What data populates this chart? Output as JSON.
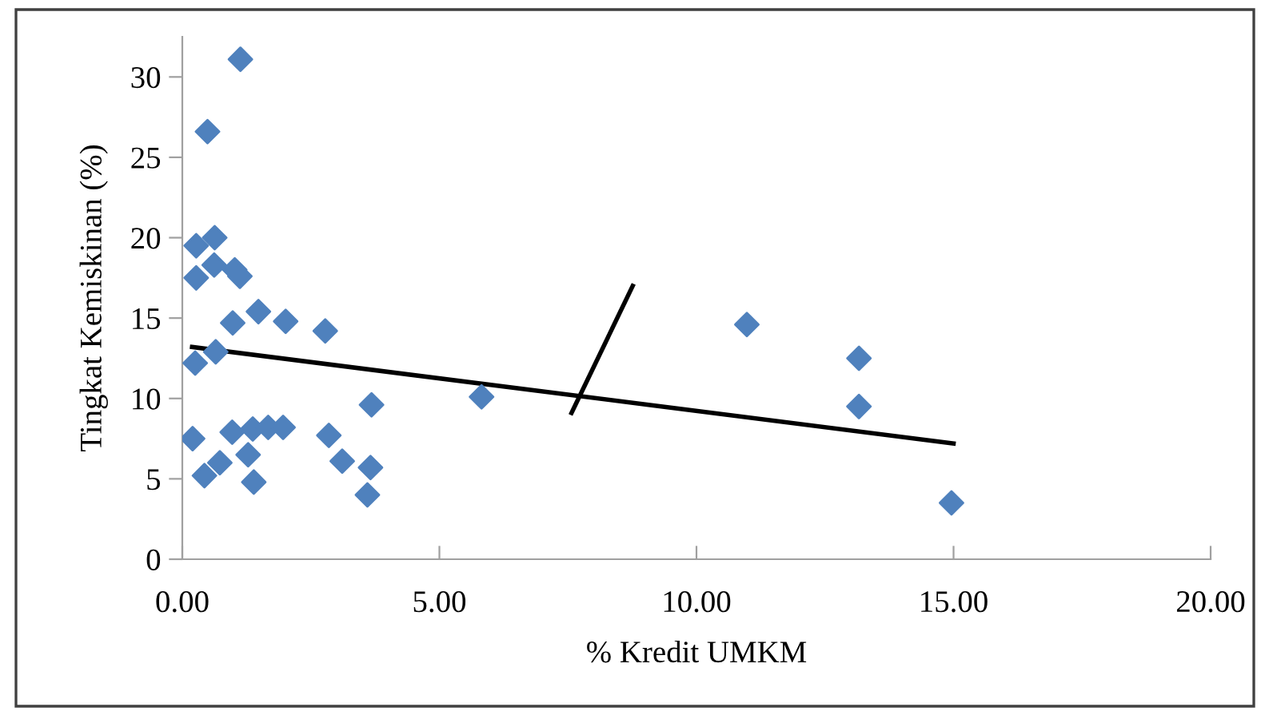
{
  "chart_data": {
    "type": "scatter",
    "xlabel": "% Kredit UMKM",
    "ylabel": "Tingkat Kemiskinan (%)",
    "xlim": [
      0,
      20
    ],
    "xticks": [
      {
        "value": 0,
        "label": "0.00"
      },
      {
        "value": 5,
        "label": "5.00"
      },
      {
        "value": 10,
        "label": "10.00"
      },
      {
        "value": 15,
        "label": "15.00"
      },
      {
        "value": 20,
        "label": "20.00"
      }
    ],
    "ylim": [
      0,
      32.5
    ],
    "yticks": [
      0,
      5,
      10,
      15,
      20,
      25,
      30
    ],
    "grid": false,
    "legend": false,
    "series": [
      {
        "marker": "diamond",
        "color": "#4f81bd",
        "x": [
          1.13,
          0.49,
          0.27,
          0.63,
          0.62,
          1.02,
          1.12,
          0.27,
          1.48,
          0.98,
          2.01,
          2.78,
          0.65,
          0.25,
          5.82,
          3.68,
          0.2,
          0.97,
          1.37,
          1.67,
          1.96,
          2.85,
          1.28,
          0.73,
          0.43,
          3.11,
          3.66,
          1.39,
          3.6,
          10.98,
          13.16,
          13.16,
          14.96
        ],
        "values": [
          31.1,
          26.6,
          19.5,
          20.0,
          18.3,
          18.0,
          17.6,
          17.5,
          15.4,
          14.7,
          14.8,
          14.2,
          12.9,
          12.2,
          10.1,
          9.6,
          7.5,
          7.9,
          8.1,
          8.2,
          8.2,
          7.7,
          6.5,
          6.0,
          5.2,
          6.1,
          5.7,
          4.8,
          4.0,
          14.6,
          12.5,
          9.5,
          3.5
        ]
      },
      {
        "type": "line",
        "marker": "none",
        "line_style": "solid",
        "color": "#000000",
        "x": [
          0.19,
          15.0
        ],
        "values": [
          13.2,
          7.2
        ]
      },
      {
        "type": "line",
        "marker": "none",
        "line_style": "solid",
        "color": "#000000",
        "x": [
          7.57,
          8.76
        ],
        "values": [
          9.1,
          17.0
        ]
      }
    ]
  }
}
